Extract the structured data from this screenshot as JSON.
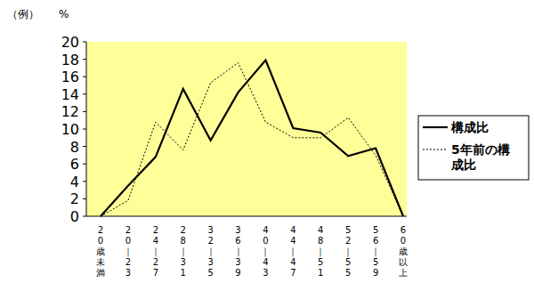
{
  "chart_data": {
    "type": "line",
    "annotations": [
      "（例）"
    ],
    "y_label": "%",
    "categories": [
      "20歳未満",
      "20｜23",
      "24｜27",
      "28｜31",
      "32｜35",
      "36｜39",
      "40｜43",
      "44｜47",
      "48｜51",
      "52｜55",
      "56｜59",
      "60歳以上"
    ],
    "series": [
      {
        "name": "構成比",
        "color": "#000000",
        "line_style": "solid",
        "values": [
          0,
          3.5,
          6.8,
          14.6,
          8.7,
          14.2,
          17.9,
          10.1,
          9.6,
          6.9,
          7.8,
          0
        ]
      },
      {
        "name": "5年前の構成比",
        "color": "#000000",
        "line_style": "dotted",
        "values": [
          0,
          1.8,
          10.8,
          7.6,
          15.3,
          17.6,
          10.8,
          9.0,
          9.0,
          11.3,
          7.0,
          0
        ]
      }
    ],
    "ylim": [
      0,
      20
    ],
    "yticks": [
      0,
      2,
      4,
      6,
      8,
      10,
      12,
      14,
      16,
      18,
      20
    ],
    "grid": false,
    "legend": "right"
  }
}
